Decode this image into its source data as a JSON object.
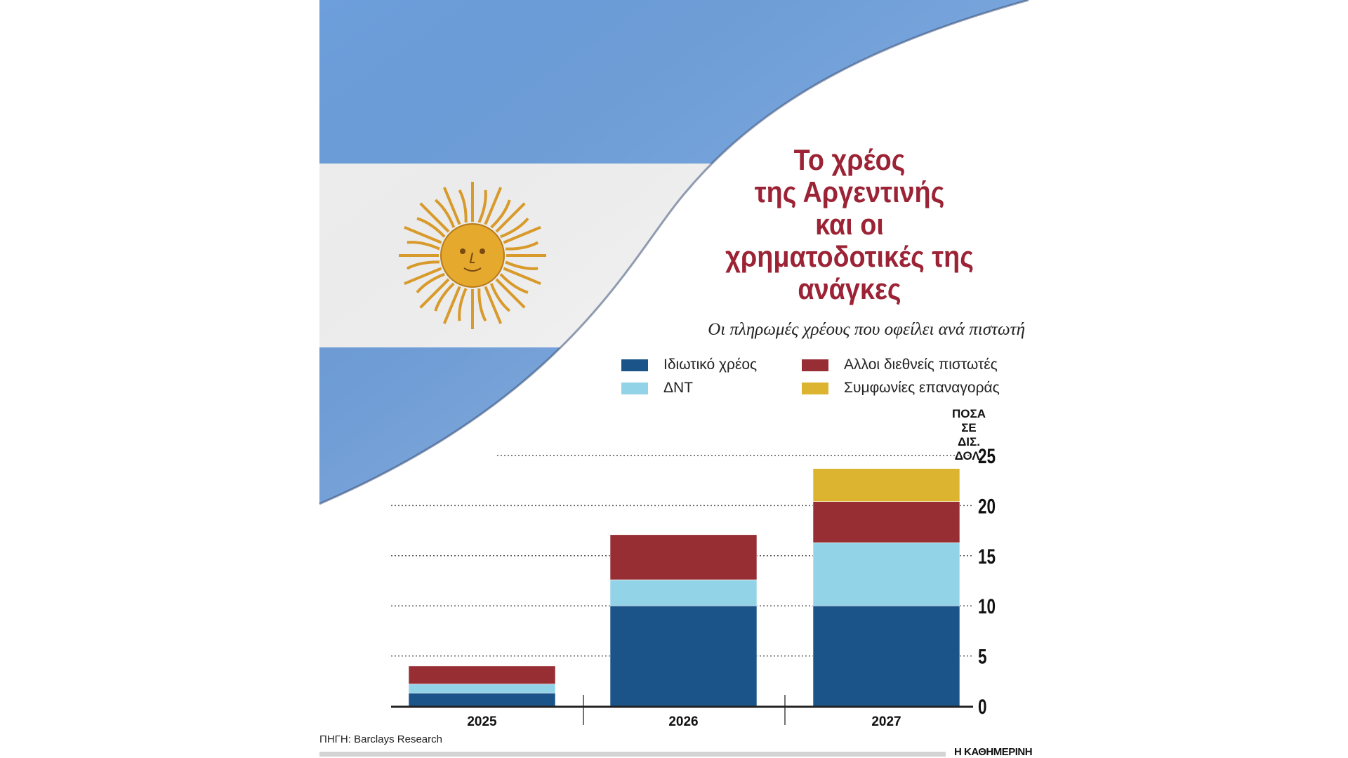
{
  "title_lines": [
    "Το χρέος",
    "της Αργεντινής",
    "και οι",
    "χρηματοδοτικές της",
    "ανάγκες"
  ],
  "subtitle": "Οι πληρωμές χρέους που οφείλει ανά πιστωτή",
  "unit_lines": [
    "ΠΟΣΑ ΣΕ",
    "ΔΙΣ. ΔΟΛ."
  ],
  "source": "ΠΗΓΗ: Barclays Research",
  "brand": "Η ΚΑΘΗΜΕΡΙΝΗ",
  "chart_data": {
    "type": "bar",
    "stacked": true,
    "categories": [
      "2025",
      "2026",
      "2027"
    ],
    "series": [
      {
        "name": "Ιδιωτικό χρέος",
        "color": "#1a5489",
        "values": [
          1.3,
          10,
          10
        ]
      },
      {
        "name": "ΔΝΤ",
        "color": "#93d3e8",
        "values": [
          0.9,
          2.6,
          6.3
        ]
      },
      {
        "name": "Αλλοι διεθνείς πιστωτές",
        "color": "#962e34",
        "values": [
          1.8,
          4.5,
          4.1
        ]
      },
      {
        "name": "Συμφωνίες επαναγοράς",
        "color": "#ddb430",
        "values": [
          0,
          0,
          3.3
        ]
      }
    ],
    "ylim": [
      0,
      25
    ],
    "yticks": [
      "0",
      "5",
      "10",
      "15",
      "20",
      "25"
    ],
    "grid": true,
    "y_axis_side": "right",
    "legend": "top"
  }
}
